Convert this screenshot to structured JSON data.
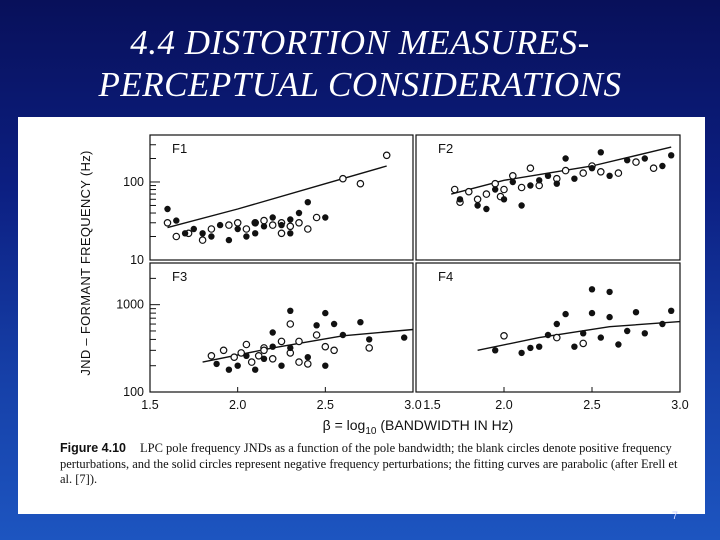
{
  "slide": {
    "title_line1": "4.4 DISTORTION MEASURES-",
    "title_line2": "PERCEPTUAL CONSIDERATIONS",
    "page_number": "7"
  },
  "figure": {
    "caption_label": "Figure 4.10",
    "caption_text": "LPC pole frequency JNDs as a function of the pole bandwidth; the blank circles denote positive frequency perturbations, and the solid circles represent negative frequency perturbations; the fitting curves are parabolic (after Erell et al. [7])."
  },
  "chart_data": {
    "type": "scatter",
    "ylabel": "JND – FORMANT FREQUENCY (Hz)",
    "xlabel": "β = log10 (BANDWIDTH IN Hz)",
    "xlabel_parts": {
      "beta": "β",
      "eq": "= log",
      "sub": "10",
      "rest": "(BANDWIDTH IN Hz)"
    },
    "x_scale": "linear",
    "y_scale": "log",
    "grid": false,
    "xlim": [
      1.5,
      3.0
    ],
    "x_ticks": [
      "1.5",
      "2.0",
      "2.5",
      "3.0"
    ],
    "legend": {
      "open": "positive frequency perturbations",
      "solid": "negative frequency perturbations"
    },
    "panels": [
      {
        "label": "F1",
        "row": 0,
        "col": 0,
        "ylim": [
          10,
          400
        ],
        "y_ticks": [
          {
            "value": 100,
            "label": "100"
          },
          {
            "value": 10,
            "label": "10"
          }
        ],
        "fit": [
          [
            1.6,
            26
          ],
          [
            2.0,
            45
          ],
          [
            2.5,
            95
          ],
          [
            2.85,
            160
          ]
        ],
        "open": [
          [
            1.6,
            30
          ],
          [
            1.65,
            20
          ],
          [
            1.72,
            22
          ],
          [
            1.85,
            25
          ],
          [
            1.95,
            28
          ],
          [
            2.0,
            30
          ],
          [
            2.05,
            25
          ],
          [
            2.1,
            30
          ],
          [
            2.15,
            32
          ],
          [
            2.2,
            28
          ],
          [
            2.25,
            30
          ],
          [
            2.3,
            27
          ],
          [
            2.35,
            30
          ],
          [
            2.4,
            25
          ],
          [
            2.45,
            35
          ],
          [
            2.6,
            110
          ],
          [
            2.7,
            95
          ],
          [
            2.85,
            220
          ],
          [
            1.8,
            18
          ],
          [
            2.25,
            22
          ]
        ],
        "solid": [
          [
            1.6,
            45
          ],
          [
            1.65,
            32
          ],
          [
            1.7,
            22
          ],
          [
            1.75,
            25
          ],
          [
            1.8,
            22
          ],
          [
            1.85,
            20
          ],
          [
            1.9,
            28
          ],
          [
            2.0,
            25
          ],
          [
            2.05,
            20
          ],
          [
            2.1,
            22
          ],
          [
            2.15,
            27
          ],
          [
            2.2,
            35
          ],
          [
            2.25,
            28
          ],
          [
            2.3,
            33
          ],
          [
            2.35,
            40
          ],
          [
            2.4,
            55
          ],
          [
            2.5,
            35
          ],
          [
            2.3,
            22
          ],
          [
            2.1,
            30
          ],
          [
            1.95,
            18
          ]
        ]
      },
      {
        "label": "F2",
        "row": 0,
        "col": 1,
        "ylim": [
          10,
          400
        ],
        "y_ticks": [],
        "fit": [
          [
            1.7,
            70
          ],
          [
            2.0,
            105
          ],
          [
            2.5,
            160
          ],
          [
            2.95,
            280
          ]
        ],
        "open": [
          [
            1.72,
            80
          ],
          [
            1.75,
            55
          ],
          [
            1.8,
            75
          ],
          [
            1.85,
            60
          ],
          [
            1.9,
            70
          ],
          [
            1.95,
            95
          ],
          [
            2.0,
            80
          ],
          [
            2.05,
            120
          ],
          [
            2.1,
            85
          ],
          [
            2.15,
            150
          ],
          [
            2.2,
            90
          ],
          [
            2.3,
            110
          ],
          [
            2.35,
            140
          ],
          [
            2.45,
            130
          ],
          [
            2.5,
            160
          ],
          [
            2.55,
            135
          ],
          [
            2.65,
            130
          ],
          [
            2.75,
            180
          ],
          [
            2.85,
            150
          ],
          [
            1.98,
            65
          ]
        ],
        "solid": [
          [
            1.75,
            60
          ],
          [
            1.85,
            50
          ],
          [
            1.9,
            45
          ],
          [
            1.95,
            80
          ],
          [
            2.0,
            60
          ],
          [
            2.05,
            100
          ],
          [
            2.1,
            50
          ],
          [
            2.15,
            90
          ],
          [
            2.2,
            105
          ],
          [
            2.25,
            120
          ],
          [
            2.3,
            95
          ],
          [
            2.4,
            110
          ],
          [
            2.5,
            150
          ],
          [
            2.6,
            120
          ],
          [
            2.7,
            190
          ],
          [
            2.8,
            200
          ],
          [
            2.9,
            160
          ],
          [
            2.95,
            220
          ],
          [
            2.35,
            200
          ],
          [
            2.55,
            240
          ]
        ]
      },
      {
        "label": "F3",
        "row": 1,
        "col": 0,
        "ylim": [
          100,
          3000
        ],
        "y_ticks": [
          {
            "value": 1000,
            "label": "1000"
          },
          {
            "value": 100,
            "label": "100"
          }
        ],
        "fit": [
          [
            1.8,
            220
          ],
          [
            2.2,
            320
          ],
          [
            2.6,
            440
          ],
          [
            3.0,
            520
          ]
        ],
        "open": [
          [
            1.85,
            260
          ],
          [
            1.92,
            300
          ],
          [
            1.98,
            250
          ],
          [
            2.02,
            280
          ],
          [
            2.08,
            220
          ],
          [
            2.12,
            260
          ],
          [
            2.15,
            320
          ],
          [
            2.2,
            240
          ],
          [
            2.25,
            380
          ],
          [
            2.3,
            280
          ],
          [
            2.35,
            220
          ],
          [
            2.4,
            210
          ],
          [
            2.45,
            450
          ],
          [
            2.5,
            330
          ],
          [
            2.55,
            300
          ],
          [
            2.3,
            600
          ],
          [
            2.15,
            300
          ],
          [
            2.05,
            350
          ],
          [
            2.35,
            380
          ],
          [
            2.75,
            320
          ]
        ],
        "solid": [
          [
            1.88,
            210
          ],
          [
            1.95,
            180
          ],
          [
            2.0,
            200
          ],
          [
            2.05,
            260
          ],
          [
            2.1,
            180
          ],
          [
            2.15,
            240
          ],
          [
            2.2,
            330
          ],
          [
            2.25,
            200
          ],
          [
            2.3,
            320
          ],
          [
            2.4,
            250
          ],
          [
            2.45,
            580
          ],
          [
            2.5,
            200
          ],
          [
            2.55,
            600
          ],
          [
            2.6,
            450
          ],
          [
            2.7,
            630
          ],
          [
            2.75,
            400
          ],
          [
            2.95,
            420
          ],
          [
            2.5,
            800
          ],
          [
            2.3,
            850
          ],
          [
            2.2,
            480
          ]
        ]
      },
      {
        "label": "F4",
        "row": 1,
        "col": 1,
        "ylim": [
          100,
          3000
        ],
        "y_ticks": [],
        "fit": [
          [
            1.85,
            300
          ],
          [
            2.2,
            420
          ],
          [
            2.6,
            560
          ],
          [
            3.0,
            640
          ]
        ],
        "open": [
          [
            2.0,
            440
          ],
          [
            2.3,
            420
          ],
          [
            2.45,
            360
          ]
        ],
        "solid": [
          [
            1.95,
            300
          ],
          [
            2.1,
            280
          ],
          [
            2.15,
            320
          ],
          [
            2.2,
            330
          ],
          [
            2.25,
            450
          ],
          [
            2.3,
            600
          ],
          [
            2.35,
            780
          ],
          [
            2.4,
            330
          ],
          [
            2.45,
            470
          ],
          [
            2.5,
            800
          ],
          [
            2.55,
            420
          ],
          [
            2.6,
            720
          ],
          [
            2.65,
            350
          ],
          [
            2.7,
            500
          ],
          [
            2.75,
            820
          ],
          [
            2.8,
            470
          ],
          [
            2.9,
            600
          ],
          [
            2.5,
            1500
          ],
          [
            2.6,
            1400
          ],
          [
            2.95,
            850
          ]
        ]
      }
    ]
  },
  "colors": {
    "ink": "#111111",
    "panel": "#ffffff",
    "title": "#ffffff"
  }
}
